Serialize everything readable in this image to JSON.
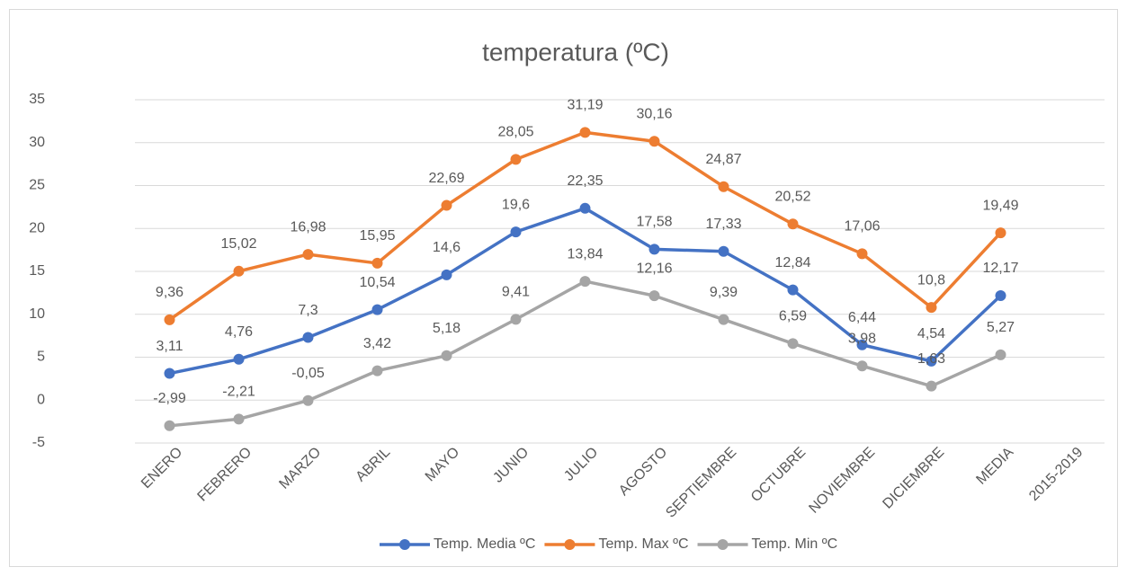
{
  "chart_data": {
    "type": "line",
    "title": "temperatura (ºC)",
    "categories": [
      "ENERO",
      "FEBRERO",
      "MARZO",
      "ABRIL",
      "MAYO",
      "JUNIO",
      "JULIO",
      "AGOSTO",
      "SEPTIEMBRE",
      "OCTUBRE",
      "NOVIEMBRE",
      "DICIEMBRE",
      "MEDIA",
      "2015-2019"
    ],
    "series": [
      {
        "name": "Temp. Media ºC",
        "color": "#4472c4",
        "values": [
          3.11,
          4.76,
          7.3,
          10.54,
          14.6,
          19.6,
          22.35,
          17.58,
          17.33,
          12.84,
          6.44,
          4.54,
          12.17,
          null
        ],
        "value_labels": [
          "3,11",
          "4,76",
          "7,3",
          "10,54",
          "14,6",
          "19,6",
          "22,35",
          "17,58",
          "17,33",
          "12,84",
          "6,44",
          "4,54",
          "12,17",
          null
        ]
      },
      {
        "name": "Temp. Max ºC",
        "color": "#ed7d31",
        "values": [
          9.36,
          15.02,
          16.98,
          15.95,
          22.69,
          28.05,
          31.19,
          30.16,
          24.87,
          20.52,
          17.06,
          10.8,
          19.49,
          null
        ],
        "value_labels": [
          "9,36",
          "15,02",
          "16,98",
          "15,95",
          "22,69",
          "28,05",
          "31,19",
          "30,16",
          "24,87",
          "20,52",
          "17,06",
          "10,8",
          "19,49",
          null
        ]
      },
      {
        "name": "Temp. Min ºC",
        "color": "#a5a5a5",
        "values": [
          -2.99,
          -2.21,
          -0.05,
          3.42,
          5.18,
          9.41,
          13.84,
          12.16,
          9.39,
          6.59,
          3.98,
          1.63,
          5.27,
          null
        ],
        "value_labels": [
          "-2,99",
          "-2,21",
          "-0,05",
          "3,42",
          "5,18",
          "9,41",
          "13,84",
          "12,16",
          "9,39",
          "6,59",
          "3,98",
          "1,63",
          "5,27",
          null
        ]
      }
    ],
    "ylim": [
      -5,
      35
    ],
    "yticks": [
      -5,
      0,
      5,
      10,
      15,
      20,
      25,
      30,
      35
    ],
    "grid": true,
    "legend": "bottom"
  }
}
